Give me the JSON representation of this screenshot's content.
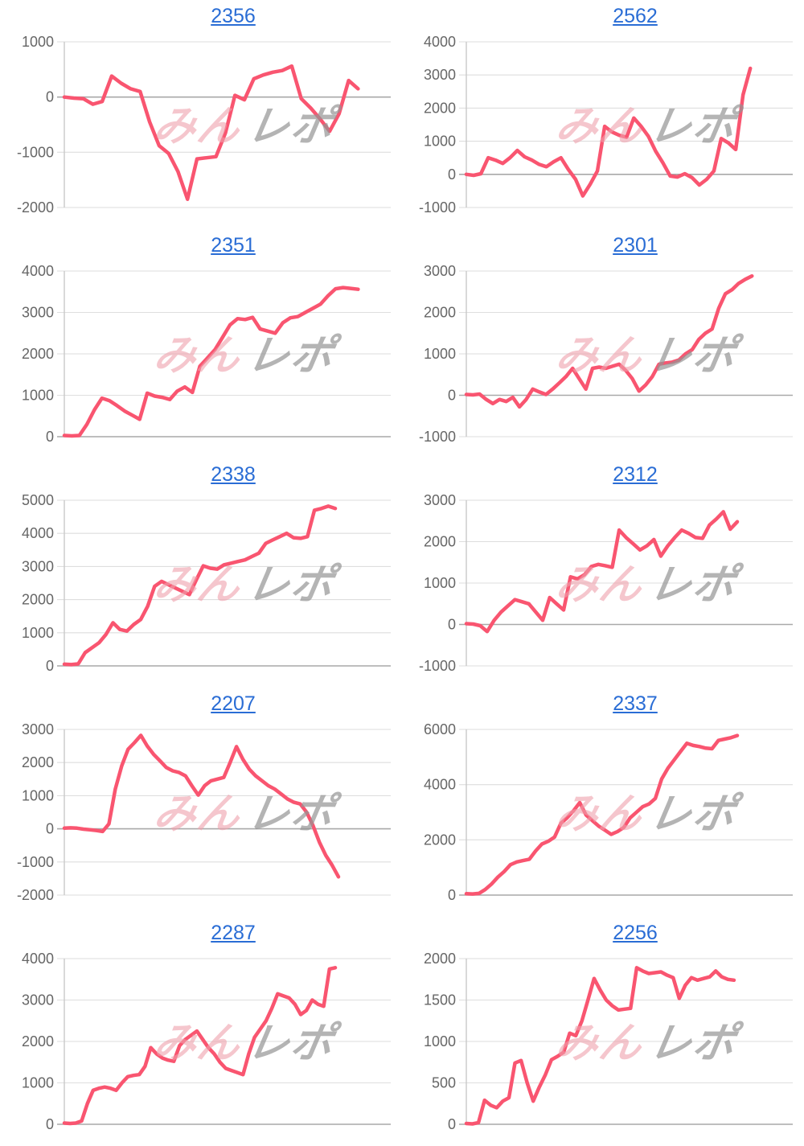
{
  "page": {
    "background": "#ffffff"
  },
  "watermark": {
    "pink_text": "みん",
    "gray_text": "レポ"
  },
  "colors": {
    "line": "#f95570",
    "grid": "#dedede",
    "zero_line": "#a9a9a9",
    "axis": "#c9c9c9",
    "tick_label": "#666666",
    "title_link": "#2a6dd5",
    "watermark_pink": "#eea0ac",
    "watermark_gray": "#949494"
  },
  "chart_data": [
    {
      "type": "line",
      "title": "2356",
      "xlabel": "",
      "ylabel": "",
      "ylim": [
        -2000,
        1000
      ],
      "ytick_step": 1000,
      "grid": true,
      "x_fill": 0.9,
      "values": [
        0,
        -20,
        -30,
        -130,
        -80,
        380,
        250,
        150,
        100,
        -450,
        -880,
        -1020,
        -1350,
        -1850,
        -1120,
        -1100,
        -1080,
        -650,
        30,
        -50,
        330,
        400,
        450,
        480,
        560,
        -30,
        -200,
        -400,
        -620,
        -300,
        300,
        150
      ]
    },
    {
      "type": "line",
      "title": "2562",
      "xlabel": "",
      "ylabel": "",
      "ylim": [
        -1000,
        4000
      ],
      "ytick_step": 1000,
      "grid": true,
      "x_fill": 0.87,
      "values": [
        0,
        -30,
        20,
        500,
        430,
        330,
        500,
        720,
        530,
        430,
        300,
        230,
        380,
        500,
        150,
        -150,
        -650,
        -300,
        100,
        1450,
        1280,
        1180,
        1120,
        1700,
        1450,
        1150,
        700,
        350,
        -50,
        -80,
        20,
        -100,
        -320,
        -150,
        100,
        1080,
        950,
        750,
        2400,
        3200
      ]
    },
    {
      "type": "line",
      "title": "2351",
      "xlabel": "",
      "ylabel": "",
      "ylim": [
        0,
        4000
      ],
      "ytick_step": 1000,
      "grid": true,
      "x_fill": 0.9,
      "values": [
        30,
        20,
        30,
        300,
        650,
        930,
        870,
        750,
        620,
        520,
        420,
        1050,
        980,
        950,
        900,
        1100,
        1200,
        1070,
        1700,
        1900,
        2100,
        2400,
        2700,
        2850,
        2830,
        2880,
        2600,
        2550,
        2500,
        2750,
        2870,
        2900,
        3000,
        3100,
        3200,
        3400,
        3570,
        3600,
        3580,
        3560
      ]
    },
    {
      "type": "line",
      "title": "2301",
      "xlabel": "",
      "ylabel": "",
      "ylim": [
        -1000,
        3000
      ],
      "ytick_step": 1000,
      "grid": true,
      "x_fill": 0.875,
      "values": [
        20,
        10,
        30,
        -100,
        -200,
        -100,
        -150,
        -50,
        -280,
        -100,
        150,
        80,
        20,
        150,
        300,
        450,
        650,
        400,
        150,
        650,
        680,
        650,
        700,
        750,
        600,
        400,
        100,
        250,
        450,
        750,
        780,
        800,
        850,
        1000,
        1100,
        1350,
        1500,
        1600,
        2100,
        2450,
        2550,
        2700,
        2800,
        2880
      ]
    },
    {
      "type": "line",
      "title": "2338",
      "xlabel": "",
      "ylabel": "",
      "ylim": [
        0,
        5000
      ],
      "ytick_step": 1000,
      "grid": true,
      "x_fill": 0.83,
      "values": [
        50,
        40,
        60,
        400,
        550,
        700,
        950,
        1300,
        1100,
        1050,
        1250,
        1400,
        1800,
        2400,
        2550,
        2450,
        2350,
        2250,
        2150,
        2600,
        3020,
        2950,
        2920,
        3050,
        3100,
        3150,
        3200,
        3300,
        3400,
        3700,
        3800,
        3900,
        4000,
        3870,
        3850,
        3900,
        4700,
        4750,
        4820,
        4750
      ]
    },
    {
      "type": "line",
      "title": "2312",
      "xlabel": "",
      "ylabel": "",
      "ylim": [
        -1000,
        3000
      ],
      "ytick_step": 1000,
      "grid": true,
      "x_fill": 0.83,
      "values": [
        20,
        10,
        -30,
        -170,
        100,
        300,
        450,
        600,
        550,
        500,
        300,
        100,
        650,
        500,
        350,
        1150,
        1100,
        1200,
        1400,
        1450,
        1420,
        1380,
        2280,
        2100,
        1950,
        1800,
        1900,
        2050,
        1650,
        1900,
        2100,
        2280,
        2200,
        2100,
        2080,
        2400,
        2550,
        2720,
        2300,
        2480
      ]
    },
    {
      "type": "line",
      "title": "2207",
      "xlabel": "",
      "ylabel": "",
      "ylim": [
        -2000,
        3000
      ],
      "ytick_step": 1000,
      "grid": true,
      "x_fill": 0.84,
      "values": [
        20,
        30,
        20,
        -10,
        -30,
        -50,
        -80,
        150,
        1200,
        1900,
        2400,
        2600,
        2820,
        2500,
        2250,
        2050,
        1850,
        1750,
        1700,
        1600,
        1300,
        1020,
        1300,
        1450,
        1500,
        1550,
        2000,
        2480,
        2100,
        1800,
        1600,
        1450,
        1300,
        1200,
        1050,
        900,
        800,
        750,
        500,
        100,
        -400,
        -800,
        -1100,
        -1450
      ]
    },
    {
      "type": "line",
      "title": "2337",
      "xlabel": "",
      "ylabel": "",
      "ylim": [
        0,
        6000
      ],
      "ytick_step": 2000,
      "grid": true,
      "x_fill": 0.83,
      "values": [
        50,
        40,
        60,
        200,
        400,
        650,
        850,
        1100,
        1200,
        1250,
        1300,
        1600,
        1850,
        1950,
        2100,
        2600,
        2800,
        3050,
        3350,
        2900,
        2700,
        2500,
        2350,
        2200,
        2300,
        2450,
        2800,
        3000,
        3200,
        3300,
        3500,
        4200,
        4600,
        4900,
        5200,
        5500,
        5420,
        5380,
        5320,
        5300,
        5600,
        5650,
        5700,
        5780
      ]
    },
    {
      "type": "line",
      "title": "2287",
      "xlabel": "",
      "ylabel": "",
      "ylim": [
        0,
        4000
      ],
      "ytick_step": 1000,
      "grid": true,
      "x_fill": 0.83,
      "values": [
        30,
        20,
        30,
        80,
        500,
        820,
        870,
        900,
        870,
        820,
        1000,
        1150,
        1180,
        1200,
        1400,
        1850,
        1700,
        1600,
        1550,
        1520,
        1900,
        2050,
        2150,
        2250,
        2050,
        1850,
        1700,
        1500,
        1350,
        1300,
        1250,
        1200,
        1700,
        2100,
        2300,
        2500,
        2800,
        3150,
        3100,
        3050,
        2900,
        2650,
        2750,
        3000,
        2900,
        2850,
        3750,
        3780
      ]
    },
    {
      "type": "line",
      "title": "2256",
      "xlabel": "",
      "ylabel": "",
      "ylim": [
        0,
        2000
      ],
      "ytick_step": 500,
      "grid": true,
      "x_fill": 0.82,
      "values": [
        10,
        5,
        20,
        290,
        230,
        200,
        280,
        320,
        740,
        770,
        500,
        280,
        450,
        600,
        780,
        820,
        870,
        1100,
        1070,
        1250,
        1500,
        1760,
        1620,
        1500,
        1430,
        1380,
        1390,
        1400,
        1890,
        1850,
        1820,
        1830,
        1840,
        1800,
        1770,
        1520,
        1680,
        1770,
        1740,
        1760,
        1780,
        1850,
        1780,
        1750,
        1740
      ]
    }
  ]
}
